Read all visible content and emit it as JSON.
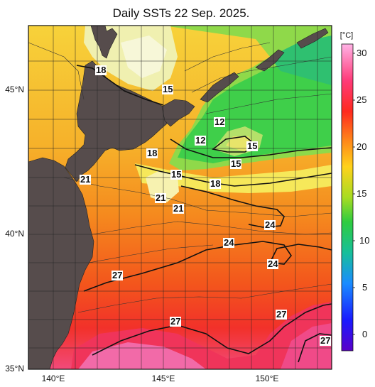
{
  "title": "Daily SSTs 22 Sep. 2025.",
  "colorbar": {
    "unit": "[°C]",
    "ticks": [
      "30",
      "25",
      "20",
      "15",
      "10",
      "5",
      "0"
    ],
    "colors": [
      "#ff99dd",
      "#ff2e5a",
      "#ff3b1a",
      "#ff8a1a",
      "#ffd21a",
      "#b9e21a",
      "#33cc33",
      "#19c28c",
      "#1a8cff",
      "#1a1aff",
      "#5a00c8"
    ]
  },
  "axes": {
    "lat_labels": [
      "45°N",
      "40°N",
      "35°N"
    ],
    "lon_labels": [
      "140°E",
      "145°E",
      "150°E"
    ]
  },
  "contour_labels": [
    "18",
    "15",
    "12",
    "12",
    "15",
    "15",
    "18",
    "15",
    "18",
    "21",
    "21",
    "21",
    "24",
    "24",
    "24",
    "27",
    "27",
    "27"
  ],
  "land_color": "#5a5050"
}
